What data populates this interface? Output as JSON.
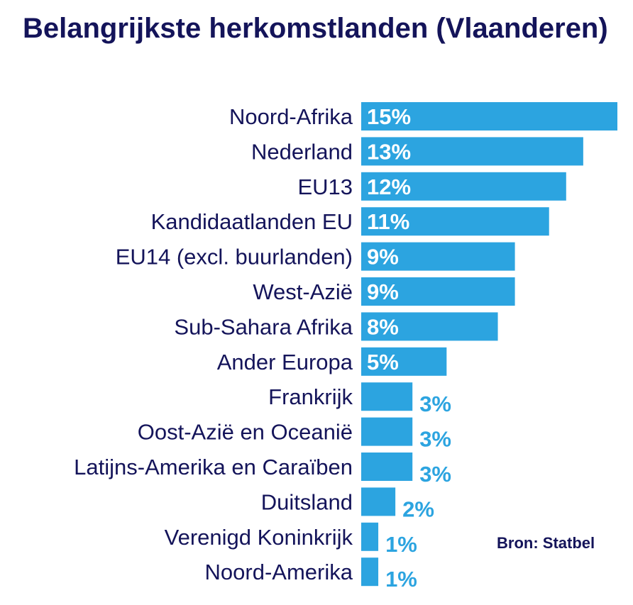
{
  "chart_data": {
    "type": "bar",
    "orientation": "horizontal",
    "title": "Belangrijkste herkomstlanden (Vlaanderen)",
    "categories": [
      "Noord-Afrika",
      "Nederland",
      "EU13",
      "Kandidaatlanden EU",
      "EU14 (excl. buurlanden)",
      "West-Azië",
      "Sub-Sahara Afrika",
      "Ander Europa",
      "Frankrijk",
      "Oost-Azië en Oceanië",
      "Latijns-Amerika en Caraïben",
      "Duitsland",
      "Verenigd Koninkrijk",
      "Noord-Amerika"
    ],
    "values": [
      15,
      13,
      12,
      11,
      9,
      9,
      8,
      5,
      3,
      3,
      3,
      2,
      1,
      1
    ],
    "value_labels": [
      "15%",
      "13%",
      "12%",
      "11%",
      "9%",
      "9%",
      "8%",
      "5%",
      "3%",
      "3%",
      "3%",
      "2%",
      "1%",
      "1%"
    ],
    "unit": "%",
    "xlim": [
      0,
      15
    ],
    "grid": false,
    "legend": "none"
  },
  "source": "Bron: Statbel",
  "colors": {
    "bar": "#2ca4e0",
    "text": "#14145a",
    "label_inside": "#ffffff",
    "label_outside": "#2ca4e0"
  }
}
